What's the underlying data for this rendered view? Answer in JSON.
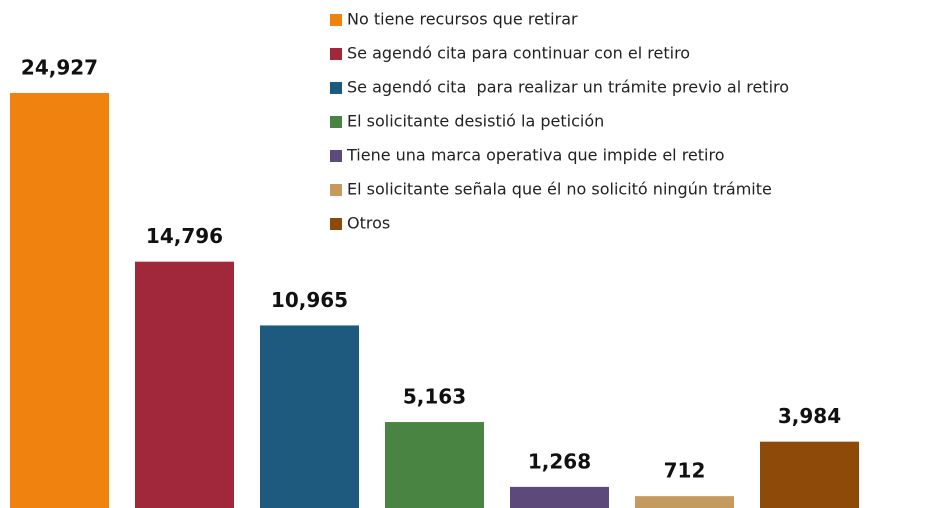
{
  "chart_data": {
    "type": "bar",
    "categories": [
      "No tiene recursos que retirar",
      "Se agendó cita para continuar con el retiro",
      "Se agendó cita  para realizar un trámite previo al retiro",
      "El solicitante desistió la petición",
      "Tiene una marca operativa que impide el retiro",
      "El solicitante señala que él no solicitó ningún trámite",
      "Otros"
    ],
    "values": [
      24927,
      14796,
      10965,
      5163,
      1268,
      712,
      3984
    ],
    "value_labels": [
      "24,927",
      "14,796",
      "10,965",
      "5,163",
      "1,268",
      "712",
      "3,984"
    ],
    "colors": [
      "#f0820f",
      "#a0283a",
      "#1d5a7e",
      "#4a8443",
      "#5e4a7a",
      "#c49a5f",
      "#8e4a08"
    ]
  }
}
